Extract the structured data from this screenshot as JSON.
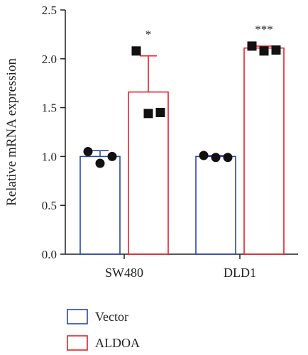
{
  "chart_data": {
    "type": "bar",
    "ylabel": "Relative mRNA expression",
    "xlabel": "",
    "ylim": [
      0,
      2.5
    ],
    "yticks": [
      "0.0",
      "0.5",
      "1.0",
      "1.5",
      "2.0",
      "2.5"
    ],
    "categories": [
      "SW480",
      "DLD1"
    ],
    "series": [
      {
        "name": "Vector",
        "color": "#2b47a3",
        "values": [
          1.0,
          1.0
        ],
        "errors": [
          0.06,
          0.01
        ],
        "points": [
          [
            1.05,
            0.93,
            1.0
          ],
          [
            1.01,
            0.99,
            0.99
          ]
        ]
      },
      {
        "name": "ALDOA",
        "color": "#e8202a",
        "values": [
          1.66,
          2.11
        ],
        "errors": [
          0.37,
          0.02
        ],
        "points": [
          [
            2.08,
            1.44,
            1.45
          ],
          [
            2.13,
            2.08,
            2.09
          ]
        ]
      }
    ],
    "significance": [
      "*",
      "***"
    ],
    "legend_position": "bottom-left"
  }
}
